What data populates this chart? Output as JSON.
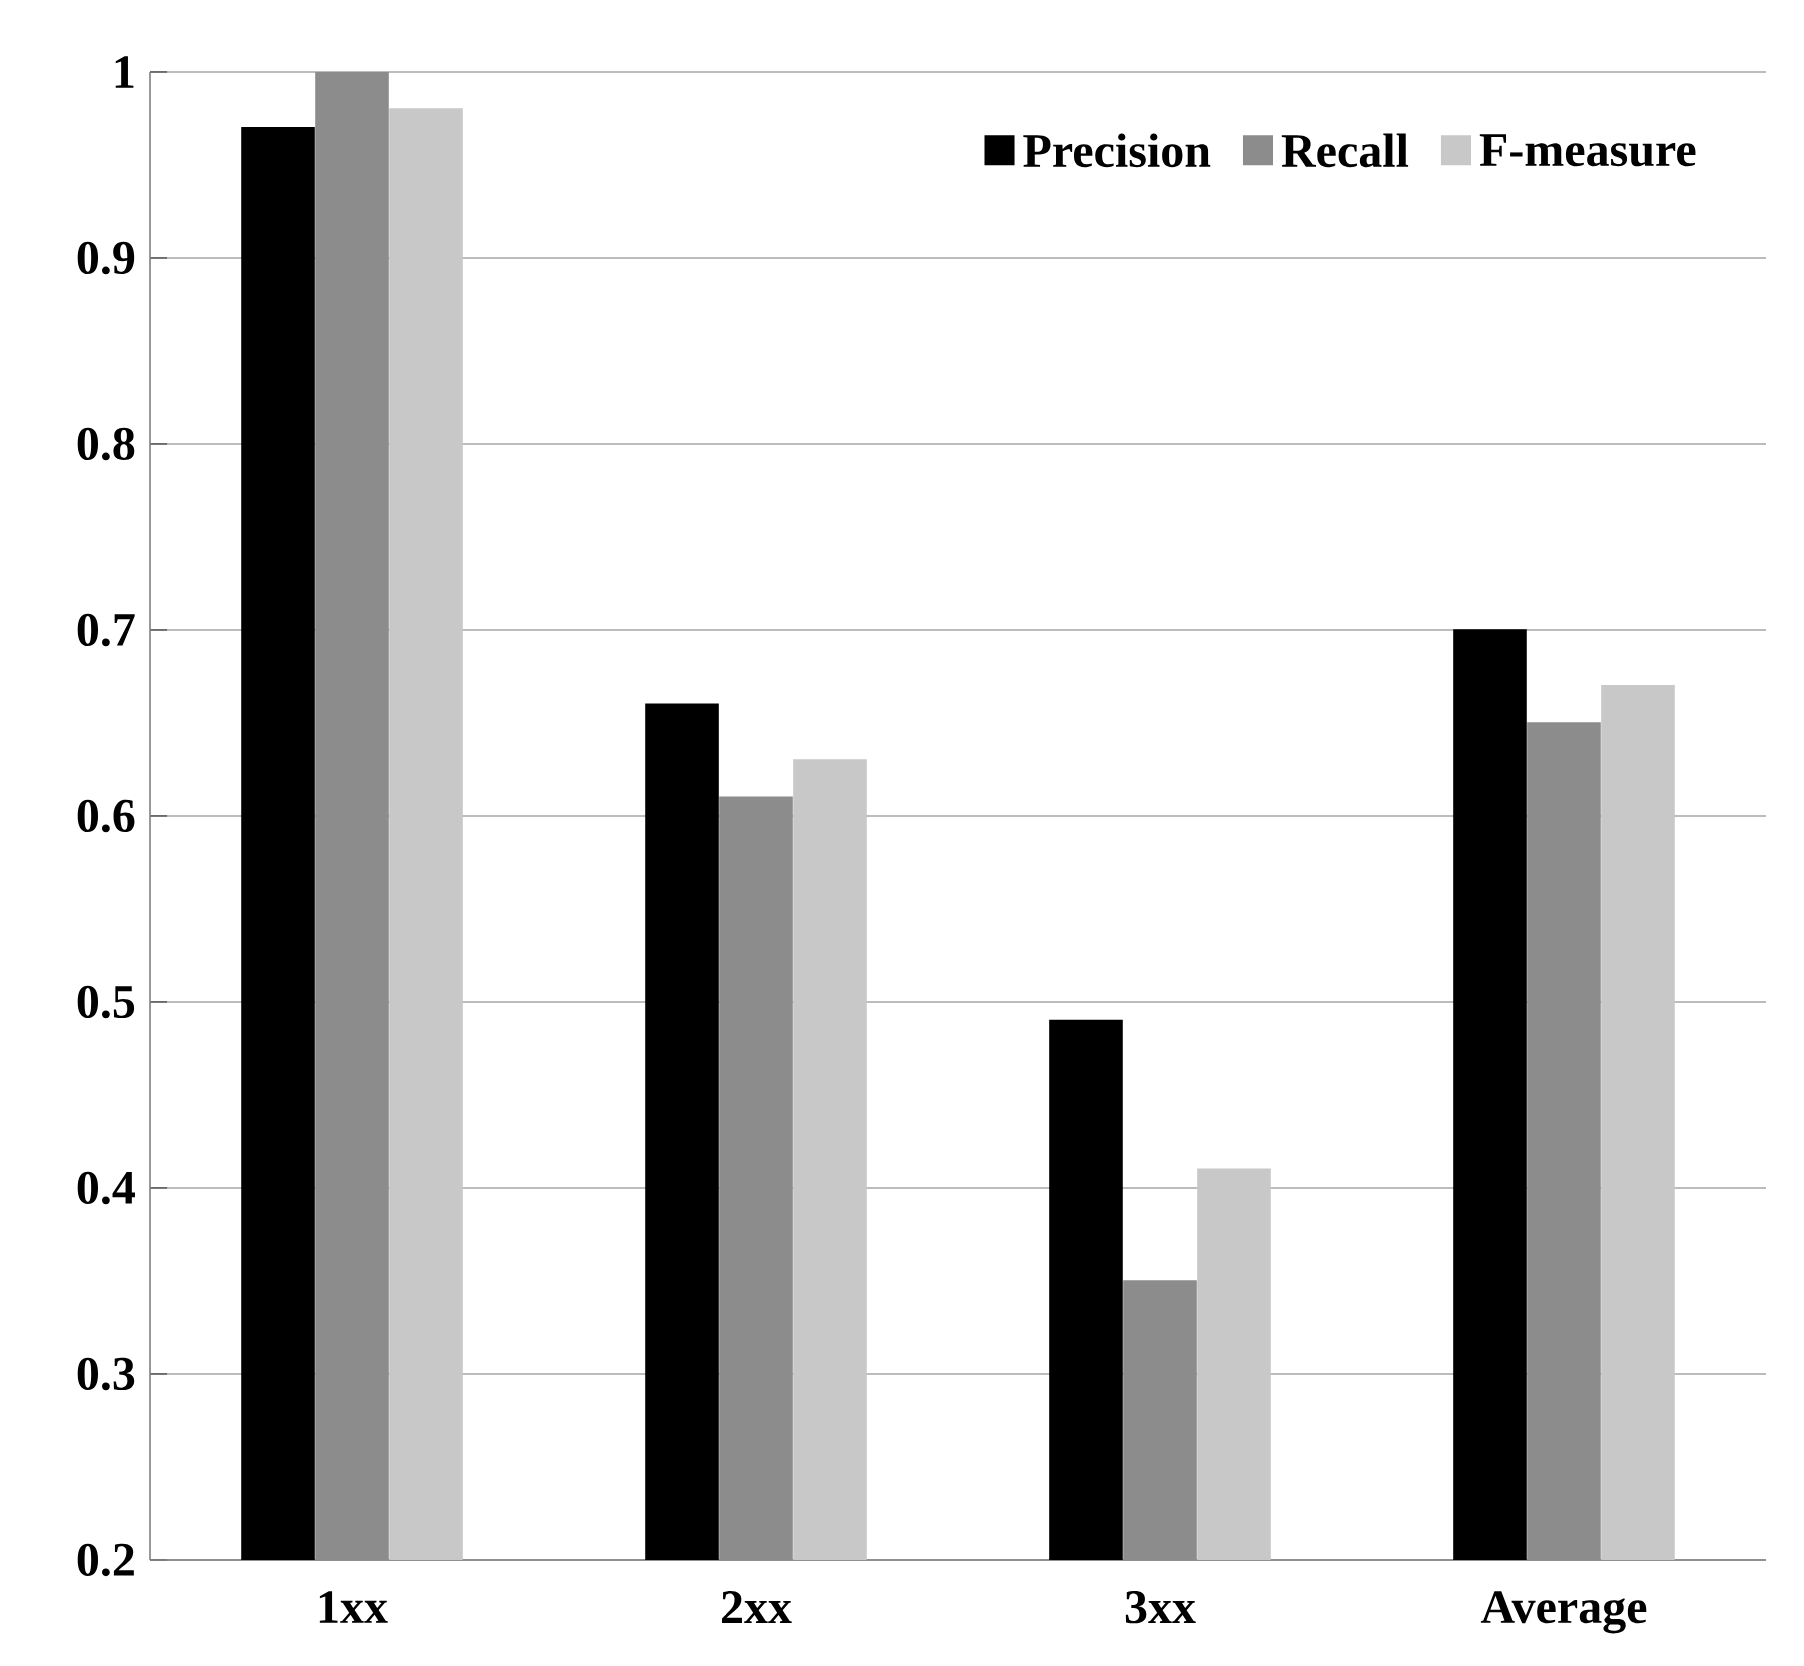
{
  "chart_data": {
    "type": "bar",
    "categories": [
      "1xx",
      "2xx",
      "3xx",
      "Average"
    ],
    "series": [
      {
        "name": "Precision",
        "color": "#000000",
        "values": [
          0.97,
          0.66,
          0.49,
          0.7
        ]
      },
      {
        "name": "Recall",
        "color": "#8c8c8c",
        "values": [
          1.0,
          0.61,
          0.35,
          0.65
        ]
      },
      {
        "name": "F-measure",
        "color": "#c8c8c8",
        "values": [
          0.98,
          0.63,
          0.41,
          0.67
        ]
      }
    ],
    "ylim": [
      0.2,
      1
    ],
    "yticks": [
      0.2,
      0.3,
      0.4,
      0.5,
      0.6,
      0.7,
      0.8,
      0.9,
      1
    ],
    "grid": "y",
    "legend": "top right"
  }
}
